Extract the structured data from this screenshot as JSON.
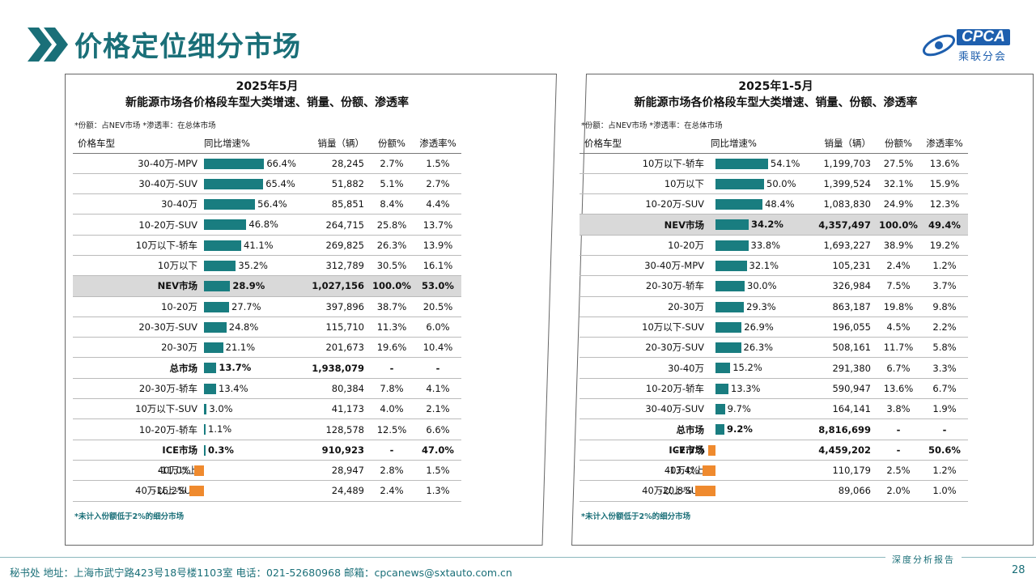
{
  "header": {
    "title": "价格定位细分市场",
    "brand": {
      "en": "CPCA",
      "cn": "乘联分会"
    },
    "accent_color": "#1a6f78"
  },
  "left": {
    "title_line1": "2025年5月",
    "title_line2": "新能源市场各价格段车型大类增速、销量、份额、渗透率",
    "note": "*份额：占NEV市场   *渗透率：在总体市场",
    "columns": [
      "价格车型",
      "同比增速%",
      "销量（辆）",
      "份额%",
      "渗透率%"
    ],
    "footnote": "*未计入份额低于2%的细分市场",
    "rows": [
      {
        "name": "30-40万-MPV",
        "growth": 66.4,
        "growth_label": "66.4%",
        "sales": "28,245",
        "share": "2.7%",
        "pen": "1.5%"
      },
      {
        "name": "30-40万-SUV",
        "growth": 65.4,
        "growth_label": "65.4%",
        "sales": "51,882",
        "share": "5.1%",
        "pen": "2.7%"
      },
      {
        "name": "30-40万",
        "growth": 56.4,
        "growth_label": "56.4%",
        "sales": "85,851",
        "share": "8.4%",
        "pen": "4.4%"
      },
      {
        "name": "10-20万-SUV",
        "growth": 46.8,
        "growth_label": "46.8%",
        "sales": "264,715",
        "share": "25.8%",
        "pen": "13.7%"
      },
      {
        "name": "10万以下-轿车",
        "growth": 41.1,
        "growth_label": "41.1%",
        "sales": "269,825",
        "share": "26.3%",
        "pen": "13.9%"
      },
      {
        "name": "10万以下",
        "growth": 35.2,
        "growth_label": "35.2%",
        "sales": "312,789",
        "share": "30.5%",
        "pen": "16.1%"
      },
      {
        "name": "NEV市场",
        "growth": 28.9,
        "growth_label": "28.9%",
        "sales": "1,027,156",
        "share": "100.0%",
        "pen": "53.0%",
        "bold": true,
        "highlight": true
      },
      {
        "name": "10-20万",
        "growth": 27.7,
        "growth_label": "27.7%",
        "sales": "397,896",
        "share": "38.7%",
        "pen": "20.5%"
      },
      {
        "name": "20-30万-SUV",
        "growth": 24.8,
        "growth_label": "24.8%",
        "sales": "115,710",
        "share": "11.3%",
        "pen": "6.0%"
      },
      {
        "name": "20-30万",
        "growth": 21.1,
        "growth_label": "21.1%",
        "sales": "201,673",
        "share": "19.6%",
        "pen": "10.4%"
      },
      {
        "name": "总市场",
        "growth": 13.7,
        "growth_label": "13.7%",
        "sales": "1,938,079",
        "share": "-",
        "pen": "-",
        "bold": true
      },
      {
        "name": "20-30万-轿车",
        "growth": 13.4,
        "growth_label": "13.4%",
        "sales": "80,384",
        "share": "7.8%",
        "pen": "4.1%"
      },
      {
        "name": "10万以下-SUV",
        "growth": 3.0,
        "growth_label": "3.0%",
        "sales": "41,173",
        "share": "4.0%",
        "pen": "2.1%"
      },
      {
        "name": "10-20万-轿车",
        "growth": 1.1,
        "growth_label": "1.1%",
        "sales": "128,578",
        "share": "12.5%",
        "pen": "6.6%"
      },
      {
        "name": "ICE市场",
        "growth": 0.3,
        "growth_label": "0.3%",
        "sales": "910,923",
        "share": "-",
        "pen": "47.0%",
        "bold": true
      },
      {
        "name": "40万以上",
        "growth": -11.0,
        "growth_label": "-11.0%",
        "sales": "28,947",
        "share": "2.8%",
        "pen": "1.5%"
      },
      {
        "name": "40万以上-SUV",
        "growth": -16.2,
        "growth_label": "-16.2%",
        "sales": "24,489",
        "share": "2.4%",
        "pen": "1.3%"
      }
    ]
  },
  "right": {
    "title_line1": "2025年1-5月",
    "title_line2": "新能源市场各价格段车型大类增速、销量、份额、渗透率",
    "note": "*份额：占NEV市场   *渗透率：在总体市场",
    "columns": [
      "价格车型",
      "同比增速%",
      "销量（辆）",
      "份额%",
      "渗透率%"
    ],
    "footnote": "*未计入份额低于2%的细分市场",
    "rows": [
      {
        "name": "10万以下-轿车",
        "growth": 54.1,
        "growth_label": "54.1%",
        "sales": "1,199,703",
        "share": "27.5%",
        "pen": "13.6%"
      },
      {
        "name": "10万以下",
        "growth": 50.0,
        "growth_label": "50.0%",
        "sales": "1,399,524",
        "share": "32.1%",
        "pen": "15.9%"
      },
      {
        "name": "10-20万-SUV",
        "growth": 48.4,
        "growth_label": "48.4%",
        "sales": "1,083,830",
        "share": "24.9%",
        "pen": "12.3%"
      },
      {
        "name": "NEV市场",
        "growth": 34.2,
        "growth_label": "34.2%",
        "sales": "4,357,497",
        "share": "100.0%",
        "pen": "49.4%",
        "bold": true,
        "highlight": true
      },
      {
        "name": "10-20万",
        "growth": 33.8,
        "growth_label": "33.8%",
        "sales": "1,693,227",
        "share": "38.9%",
        "pen": "19.2%"
      },
      {
        "name": "30-40万-MPV",
        "growth": 32.1,
        "growth_label": "32.1%",
        "sales": "105,231",
        "share": "2.4%",
        "pen": "1.2%"
      },
      {
        "name": "20-30万-轿车",
        "growth": 30.0,
        "growth_label": "30.0%",
        "sales": "326,984",
        "share": "7.5%",
        "pen": "3.7%"
      },
      {
        "name": "20-30万",
        "growth": 29.3,
        "growth_label": "29.3%",
        "sales": "863,187",
        "share": "19.8%",
        "pen": "9.8%"
      },
      {
        "name": "10万以下-SUV",
        "growth": 26.9,
        "growth_label": "26.9%",
        "sales": "196,055",
        "share": "4.5%",
        "pen": "2.2%"
      },
      {
        "name": "20-30万-SUV",
        "growth": 26.3,
        "growth_label": "26.3%",
        "sales": "508,161",
        "share": "11.7%",
        "pen": "5.8%"
      },
      {
        "name": "30-40万",
        "growth": 15.2,
        "growth_label": "15.2%",
        "sales": "291,380",
        "share": "6.7%",
        "pen": "3.3%"
      },
      {
        "name": "10-20万-轿车",
        "growth": 13.3,
        "growth_label": "13.3%",
        "sales": "590,947",
        "share": "13.6%",
        "pen": "6.7%"
      },
      {
        "name": "30-40万-SUV",
        "growth": 9.7,
        "growth_label": "9.7%",
        "sales": "164,141",
        "share": "3.8%",
        "pen": "1.9%"
      },
      {
        "name": "总市场",
        "growth": 9.2,
        "growth_label": "9.2%",
        "sales": "8,816,699",
        "share": "-",
        "pen": "-",
        "bold": true
      },
      {
        "name": "ICE市场",
        "growth": -7.7,
        "growth_label": "-7.7%",
        "sales": "4,459,202",
        "share": "-",
        "pen": "50.6%",
        "bold": true
      },
      {
        "name": "40万以上",
        "growth": -13.4,
        "growth_label": "-13.4%",
        "sales": "110,179",
        "share": "2.5%",
        "pen": "1.2%"
      },
      {
        "name": "40万以上-SUV",
        "growth": -20.8,
        "growth_label": "-20.8%",
        "sales": "89,066",
        "share": "2.0%",
        "pen": "1.0%"
      }
    ]
  },
  "footer": {
    "contact": "秘书处   地址：上海市武宁路423号18号楼1103室  电话：021-52680968   邮箱：cpcanews@sxtauto.com.cn",
    "tag": "深度分析报告",
    "page": "28"
  }
}
